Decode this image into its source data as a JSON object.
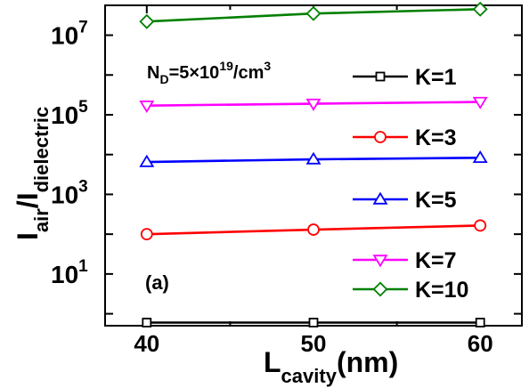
{
  "chart_data": {
    "type": "line",
    "x": [
      40,
      50,
      60
    ],
    "xlim": [
      37.5,
      62.5
    ],
    "ylog": true,
    "ylim_exp": [
      -0.3,
      7.75
    ],
    "x_ticks": [
      "40",
      "50",
      "60"
    ],
    "y_ticks": [
      {
        "base": "10",
        "exp": "1",
        "value_exp": 1
      },
      {
        "base": "10",
        "exp": "3",
        "value_exp": 3
      },
      {
        "base": "10",
        "exp": "5",
        "value_exp": 5
      },
      {
        "base": "10",
        "exp": "7",
        "value_exp": 7
      }
    ],
    "xlabel": {
      "main": "L",
      "sub": "cavity",
      "rest": "(nm)"
    },
    "ylabel": {
      "main1": "I",
      "sub1": "air",
      "mid": "/I",
      "sub2": "dielectric"
    },
    "annotation": {
      "pre": "N",
      "sub": "D",
      "mid": "=5×10",
      "sup1": "19",
      "post": "/cm",
      "sup2": "3"
    },
    "panel_label": "(a)",
    "grid": false,
    "legend_position": "right",
    "series": [
      {
        "name": "K=1",
        "color": "#000000",
        "marker": "square",
        "values": [
          0.6,
          0.6,
          0.6
        ]
      },
      {
        "name": "K=3",
        "color": "#ff0000",
        "marker": "circle",
        "values": [
          100,
          130,
          165
        ]
      },
      {
        "name": "K=5",
        "color": "#0000ff",
        "marker": "triangle-up",
        "values": [
          6500,
          7600,
          8300
        ]
      },
      {
        "name": "K=7",
        "color": "#ff00ff",
        "marker": "triangle-down",
        "values": [
          170000,
          190000,
          210000
        ]
      },
      {
        "name": "K=10",
        "color": "#008000",
        "marker": "diamond",
        "values": [
          22000000,
          35000000,
          45000000
        ]
      }
    ]
  }
}
